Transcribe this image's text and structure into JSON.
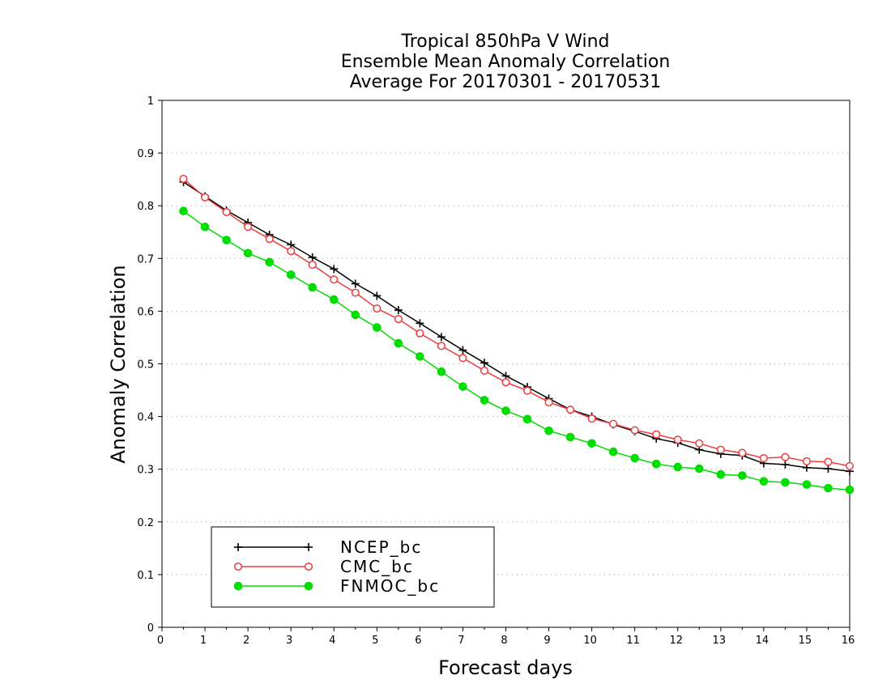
{
  "chart_data": {
    "type": "line",
    "title": [
      "Tropical 850hPa V Wind",
      "Ensemble Mean Anomaly Correlation",
      "Average For 20170301 - 20170531"
    ],
    "xlabel": "Forecast days",
    "ylabel": "Anomaly Correlation",
    "xlim": [
      0,
      16
    ],
    "ylim": [
      0,
      1
    ],
    "xticks": [
      0,
      1,
      2,
      3,
      4,
      5,
      6,
      7,
      8,
      9,
      10,
      11,
      12,
      13,
      14,
      15,
      16
    ],
    "yticks": [
      0,
      0.1,
      0.2,
      0.3,
      0.4,
      0.5,
      0.6,
      0.7,
      0.8,
      0.9,
      1
    ],
    "ytick_labels": [
      "0",
      "0.1",
      "0.2",
      "0.3",
      "0.4",
      "0.5",
      "0.6",
      "0.7",
      "0.8",
      "0.9",
      "1"
    ],
    "grid": "horizontal-dotted",
    "legend_position": "bottom-left",
    "x": [
      0.5,
      1,
      1.5,
      2,
      2.5,
      3,
      3.5,
      4,
      4.5,
      5,
      5.5,
      6,
      6.5,
      7,
      7.5,
      8,
      8.5,
      9,
      9.5,
      10,
      10.5,
      11,
      11.5,
      12,
      12.5,
      13,
      13.5,
      14,
      14.5,
      15,
      15.5,
      16
    ],
    "series": [
      {
        "name": "NCEP_bc",
        "color": "#000000",
        "marker": "plus",
        "values": [
          0.845,
          0.818,
          0.791,
          0.768,
          0.745,
          0.726,
          0.702,
          0.68,
          0.652,
          0.629,
          0.602,
          0.577,
          0.551,
          0.526,
          0.502,
          0.477,
          0.456,
          0.434,
          0.413,
          0.4,
          0.385,
          0.372,
          0.358,
          0.35,
          0.337,
          0.329,
          0.326,
          0.311,
          0.309,
          0.303,
          0.301,
          0.296
        ]
      },
      {
        "name": "CMC_bc",
        "color": "#ee3b3b",
        "marker": "open-circle",
        "values": [
          0.851,
          0.816,
          0.788,
          0.76,
          0.737,
          0.714,
          0.688,
          0.66,
          0.635,
          0.605,
          0.585,
          0.558,
          0.534,
          0.511,
          0.487,
          0.465,
          0.449,
          0.427,
          0.413,
          0.396,
          0.386,
          0.374,
          0.366,
          0.356,
          0.349,
          0.337,
          0.331,
          0.321,
          0.323,
          0.315,
          0.314,
          0.306
        ]
      },
      {
        "name": "FNMOC_bc",
        "color": "#00dd00",
        "marker": "filled-circle",
        "values": [
          0.79,
          0.76,
          0.735,
          0.71,
          0.693,
          0.669,
          0.645,
          0.622,
          0.593,
          0.569,
          0.539,
          0.514,
          0.485,
          0.457,
          0.431,
          0.411,
          0.395,
          0.373,
          0.361,
          0.349,
          0.333,
          0.321,
          0.31,
          0.304,
          0.301,
          0.29,
          0.288,
          0.277,
          0.275,
          0.271,
          0.264,
          0.261
        ]
      }
    ]
  }
}
